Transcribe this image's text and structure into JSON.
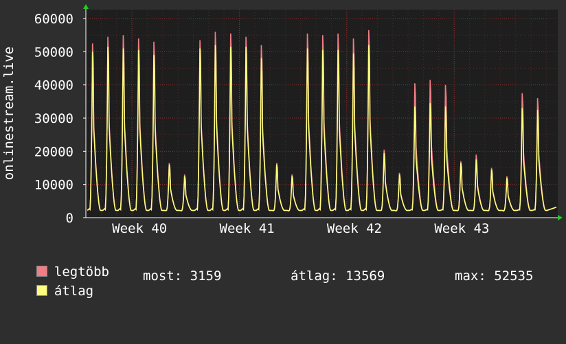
{
  "colors": {
    "max_series": "#f17d85",
    "avg_series": "#fdfd80",
    "background": "#2e2e2e",
    "plot_bg": "#1e1e1e",
    "grid": "#8a3030"
  },
  "chart_data": {
    "type": "line",
    "ylabel": "onlinestream.live",
    "ylim": [
      0,
      60000
    ],
    "yticks": [
      0,
      10000,
      20000,
      30000,
      40000,
      50000,
      60000
    ],
    "ytick_labels": [
      "0",
      "10000",
      "20000",
      "30000",
      "40000",
      "50000",
      "60000"
    ],
    "xtick_labels": [
      "Week 40",
      "Week 41",
      "Week 42",
      "Week 43"
    ],
    "grid": true,
    "legend_position": "bottom-left",
    "daily_peaks": {
      "max": [
        52500,
        54500,
        55000,
        54000,
        53000,
        16500,
        13000,
        53500,
        56000,
        55500,
        54500,
        52000,
        16500,
        13000,
        55500,
        55000,
        55500,
        54000,
        56500,
        20500,
        13500,
        40500,
        41500,
        40000,
        17000,
        19000,
        15000,
        12500,
        37500,
        36000
      ],
      "avg": [
        50000,
        51500,
        51000,
        50500,
        49000,
        16000,
        12500,
        51000,
        52000,
        51500,
        51500,
        48000,
        16000,
        12500,
        51000,
        50500,
        50500,
        49500,
        52000,
        19500,
        13000,
        33500,
        34500,
        33500,
        16500,
        17500,
        14500,
        12000,
        33000,
        32500
      ]
    },
    "series": [
      {
        "name": "legtöbb",
        "color": "#f17d85"
      },
      {
        "name": "átlag",
        "color": "#fdfd80"
      }
    ]
  },
  "legend": {
    "max_label": "legtöbb",
    "avg_label": "átlag",
    "stats": {
      "current": "most: 3159",
      "average": "átlag: 13569",
      "maximum": "max: 52535"
    }
  }
}
